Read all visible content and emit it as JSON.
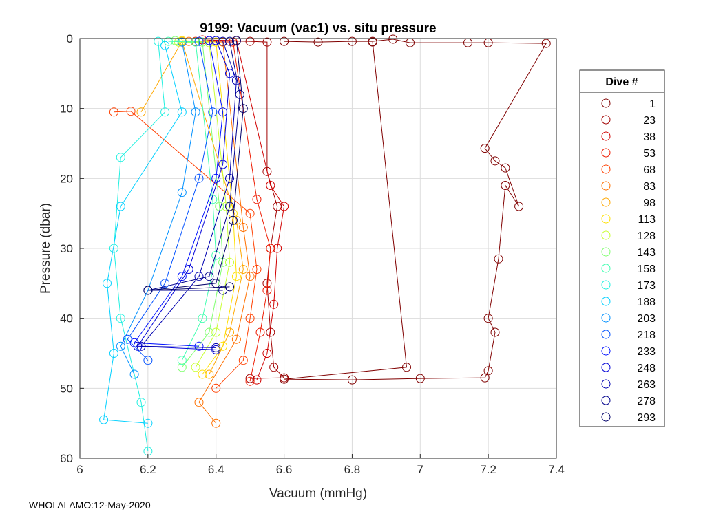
{
  "chart_data": {
    "type": "scatter",
    "title": "9199: Vacuum (vac1) vs. situ pressure",
    "xlabel": "Vacuum (mmHg)",
    "ylabel": "Pressure (dbar)",
    "xlim": [
      6,
      7.4
    ],
    "ylim": [
      0,
      60
    ],
    "y_reversed": true,
    "x_ticks": [
      "6",
      "6.2",
      "6.4",
      "6.6",
      "6.8",
      "7",
      "7.2",
      "7.4"
    ],
    "y_ticks": [
      "0",
      "10",
      "20",
      "30",
      "40",
      "50",
      "60"
    ],
    "grid": true,
    "marker": "open-circle",
    "legend": {
      "title": "Dive #",
      "placement": "right-outside",
      "entries": [
        {
          "label": "1",
          "color": "#800000"
        },
        {
          "label": "23",
          "color": "#a10000"
        },
        {
          "label": "38",
          "color": "#d00000"
        },
        {
          "label": "53",
          "color": "#ee1a00"
        },
        {
          "label": "68",
          "color": "#ff4000"
        },
        {
          "label": "83",
          "color": "#ff7000"
        },
        {
          "label": "98",
          "color": "#ffa800"
        },
        {
          "label": "113",
          "color": "#ffe000"
        },
        {
          "label": "128",
          "color": "#c8ff30"
        },
        {
          "label": "143",
          "color": "#80ff70"
        },
        {
          "label": "158",
          "color": "#40ffb0"
        },
        {
          "label": "173",
          "color": "#20f0e0"
        },
        {
          "label": "188",
          "color": "#00d0ff"
        },
        {
          "label": "203",
          "color": "#0090ff"
        },
        {
          "label": "218",
          "color": "#0050ff"
        },
        {
          "label": "233",
          "color": "#0010ff"
        },
        {
          "label": "248",
          "color": "#0000d8"
        },
        {
          "label": "263",
          "color": "#0000b0"
        },
        {
          "label": "278",
          "color": "#00008c"
        },
        {
          "label": "293",
          "color": "#00006a"
        }
      ]
    },
    "series": [
      {
        "name": "1",
        "color": "#800000",
        "points": [
          [
            6.6,
            0.4
          ],
          [
            6.7,
            0.5
          ],
          [
            6.8,
            0.4
          ],
          [
            6.86,
            0.4
          ],
          [
            6.92,
            0.1
          ],
          [
            6.97,
            0.6
          ],
          [
            7.14,
            0.6
          ],
          [
            7.2,
            0.6
          ],
          [
            7.37,
            0.7
          ],
          [
            7.19,
            15.7
          ],
          [
            7.22,
            17.5
          ],
          [
            7.25,
            18.5
          ],
          [
            7.29,
            24
          ],
          [
            7.25,
            21
          ],
          [
            7.23,
            31.5
          ],
          [
            7.2,
            40
          ],
          [
            7.22,
            42
          ],
          [
            7.2,
            47.5
          ],
          [
            7.19,
            48.5
          ],
          [
            7.0,
            48.6
          ],
          [
            6.8,
            48.8
          ],
          [
            6.6,
            48.7
          ],
          [
            6.96,
            47
          ],
          [
            6.86,
            0.5
          ]
        ]
      },
      {
        "name": "23",
        "color": "#a10000",
        "points": [
          [
            6.38,
            0.3
          ],
          [
            6.5,
            0.4
          ],
          [
            6.55,
            0.5
          ],
          [
            6.55,
            19
          ],
          [
            6.58,
            24
          ],
          [
            6.56,
            30
          ],
          [
            6.55,
            35
          ],
          [
            6.56,
            42
          ],
          [
            6.57,
            47
          ],
          [
            6.6,
            48.5
          ],
          [
            6.5,
            48.6
          ]
        ]
      },
      {
        "name": "38",
        "color": "#d00000",
        "points": [
          [
            6.36,
            0.2
          ],
          [
            6.46,
            0.3
          ],
          [
            6.56,
            21
          ],
          [
            6.6,
            24
          ],
          [
            6.58,
            30
          ],
          [
            6.57,
            38
          ],
          [
            6.55,
            45
          ],
          [
            6.52,
            48.8
          ]
        ]
      },
      {
        "name": "53",
        "color": "#ee1a00",
        "points": [
          [
            6.34,
            0.4
          ],
          [
            6.45,
            0.5
          ],
          [
            6.52,
            23
          ],
          [
            6.56,
            30
          ],
          [
            6.55,
            36
          ],
          [
            6.53,
            42
          ],
          [
            6.5,
            49
          ]
        ]
      },
      {
        "name": "68",
        "color": "#ff4000",
        "points": [
          [
            6.1,
            10.5
          ],
          [
            6.15,
            10.4
          ],
          [
            6.5,
            25
          ],
          [
            6.52,
            33
          ],
          [
            6.5,
            40
          ],
          [
            6.48,
            46
          ],
          [
            6.4,
            50
          ]
        ]
      },
      {
        "name": "83",
        "color": "#ff7000",
        "points": [
          [
            6.32,
            0.4
          ],
          [
            6.42,
            0.5
          ],
          [
            6.48,
            27
          ],
          [
            6.5,
            34
          ],
          [
            6.46,
            43
          ],
          [
            6.35,
            52
          ],
          [
            6.4,
            55
          ]
        ]
      },
      {
        "name": "98",
        "color": "#ffa800",
        "points": [
          [
            6.18,
            10.5
          ],
          [
            6.3,
            0.4
          ],
          [
            6.46,
            26
          ],
          [
            6.48,
            33
          ],
          [
            6.44,
            42
          ],
          [
            6.38,
            48
          ]
        ]
      },
      {
        "name": "113",
        "color": "#ffe000",
        "points": [
          [
            6.3,
            0.3
          ],
          [
            6.4,
            0.5
          ],
          [
            6.45,
            25
          ],
          [
            6.46,
            34
          ],
          [
            6.42,
            44
          ],
          [
            6.36,
            48
          ]
        ]
      },
      {
        "name": "128",
        "color": "#c8ff30",
        "points": [
          [
            6.29,
            0.5
          ],
          [
            6.38,
            0.6
          ],
          [
            6.43,
            24
          ],
          [
            6.44,
            32
          ],
          [
            6.4,
            42
          ],
          [
            6.34,
            47
          ]
        ]
      },
      {
        "name": "143",
        "color": "#80ff70",
        "points": [
          [
            6.28,
            0.3
          ],
          [
            6.36,
            0.5
          ],
          [
            6.41,
            24
          ],
          [
            6.42,
            32
          ],
          [
            6.38,
            42
          ],
          [
            6.3,
            47
          ]
        ]
      },
      {
        "name": "158",
        "color": "#40ffb0",
        "points": [
          [
            6.26,
            0.4
          ],
          [
            6.34,
            0.5
          ],
          [
            6.39,
            23
          ],
          [
            6.4,
            31
          ],
          [
            6.36,
            40
          ],
          [
            6.3,
            46
          ]
        ]
      },
      {
        "name": "173",
        "color": "#20f0e0",
        "points": [
          [
            6.23,
            0.4
          ],
          [
            6.25,
            10.5
          ],
          [
            6.12,
            17
          ],
          [
            6.1,
            30
          ],
          [
            6.12,
            40
          ],
          [
            6.18,
            52
          ],
          [
            6.2,
            59
          ]
        ]
      },
      {
        "name": "188",
        "color": "#00d0ff",
        "points": [
          [
            6.25,
            1
          ],
          [
            6.3,
            10.5
          ],
          [
            6.12,
            24
          ],
          [
            6.08,
            35
          ],
          [
            6.1,
            45
          ],
          [
            6.07,
            54.5
          ],
          [
            6.2,
            55
          ]
        ]
      },
      {
        "name": "203",
        "color": "#0090ff",
        "points": [
          [
            6.3,
            0.5
          ],
          [
            6.34,
            10.5
          ],
          [
            6.3,
            22
          ],
          [
            6.2,
            36
          ],
          [
            6.12,
            44
          ],
          [
            6.16,
            48
          ]
        ]
      },
      {
        "name": "218",
        "color": "#0050ff",
        "points": [
          [
            6.35,
            0.4
          ],
          [
            6.39,
            10.5
          ],
          [
            6.35,
            20
          ],
          [
            6.25,
            35
          ],
          [
            6.14,
            43
          ],
          [
            6.2,
            46
          ]
        ]
      },
      {
        "name": "233",
        "color": "#0010ff",
        "points": [
          [
            6.38,
            0.3
          ],
          [
            6.42,
            10.5
          ],
          [
            6.4,
            20
          ],
          [
            6.3,
            34
          ],
          [
            6.16,
            43.5
          ],
          [
            6.35,
            44
          ]
        ]
      },
      {
        "name": "248",
        "color": "#0000d8",
        "points": [
          [
            6.4,
            0.3
          ],
          [
            6.44,
            5
          ],
          [
            6.42,
            18
          ],
          [
            6.32,
            33
          ],
          [
            6.17,
            44
          ],
          [
            6.4,
            44.5
          ]
        ]
      },
      {
        "name": "263",
        "color": "#0000b0",
        "points": [
          [
            6.42,
            0.4
          ],
          [
            6.46,
            6
          ],
          [
            6.44,
            20
          ],
          [
            6.35,
            34
          ],
          [
            6.18,
            44
          ],
          [
            6.4,
            44.2
          ]
        ]
      },
      {
        "name": "278",
        "color": "#00008c",
        "points": [
          [
            6.44,
            0.4
          ],
          [
            6.47,
            8
          ],
          [
            6.44,
            24
          ],
          [
            6.38,
            34
          ],
          [
            6.2,
            36
          ],
          [
            6.42,
            36
          ]
        ]
      },
      {
        "name": "293",
        "color": "#00006a",
        "points": [
          [
            6.46,
            0.3
          ],
          [
            6.48,
            10
          ],
          [
            6.45,
            26
          ],
          [
            6.4,
            35
          ],
          [
            6.2,
            36
          ],
          [
            6.44,
            35.5
          ]
        ]
      }
    ]
  },
  "footer": "WHOI ALAMO:12-May-2020"
}
